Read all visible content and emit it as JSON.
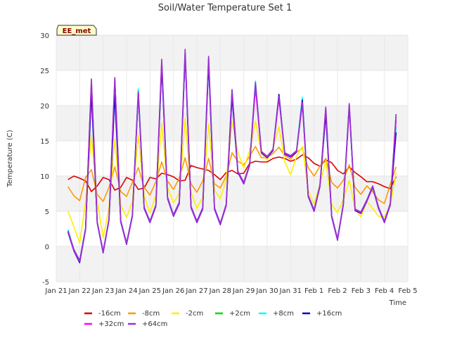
{
  "chart_data": {
    "type": "line",
    "title": "Soil/Water Temperature Set 1",
    "xlabel": "Time",
    "ylabel": "Temperature (C)",
    "site_badge": "EE_met",
    "ylim": [
      -5,
      30
    ],
    "yticks": [
      -5,
      0,
      5,
      10,
      15,
      20,
      25,
      30
    ],
    "xlim": [
      "2024-01-21",
      "2024-02-05"
    ],
    "xticks": [
      "Jan 21",
      "Jan 22",
      "Jan 23",
      "Jan 24",
      "Jan 25",
      "Jan 26",
      "Jan 27",
      "Jan 28",
      "Jan 29",
      "Jan 30",
      "Jan 31",
      "Feb 1",
      "Feb 2",
      "Feb 3",
      "Feb 4",
      "Feb 5"
    ],
    "grid": "alternating horizontal bands",
    "legend_position": "bottom",
    "x": [
      "Jan 21 12:00",
      "Jan 21 18:00",
      "Jan 22 00:00",
      "Jan 22 06:00",
      "Jan 22 12:00",
      "Jan 22 18:00",
      "Jan 23 00:00",
      "Jan 23 06:00",
      "Jan 23 12:00",
      "Jan 23 18:00",
      "Jan 24 00:00",
      "Jan 24 06:00",
      "Jan 24 12:00",
      "Jan 24 18:00",
      "Jan 25 00:00",
      "Jan 25 06:00",
      "Jan 25 12:00",
      "Jan 25 18:00",
      "Jan 26 00:00",
      "Jan 26 06:00",
      "Jan 26 12:00",
      "Jan 26 18:00",
      "Jan 27 00:00",
      "Jan 27 06:00",
      "Jan 27 12:00",
      "Jan 27 18:00",
      "Jan 28 00:00",
      "Jan 28 06:00",
      "Jan 28 12:00",
      "Jan 28 18:00",
      "Jan 29 00:00",
      "Jan 29 06:00",
      "Jan 29 12:00",
      "Jan 29 18:00",
      "Jan 30 00:00",
      "Jan 30 06:00",
      "Jan 30 12:00",
      "Jan 30 18:00",
      "Jan 31 00:00",
      "Jan 31 06:00",
      "Jan 31 12:00",
      "Jan 31 18:00",
      "Feb 1 00:00",
      "Feb 1 06:00",
      "Feb 1 12:00",
      "Feb 1 18:00",
      "Feb 2 00:00",
      "Feb 2 06:00",
      "Feb 2 12:00",
      "Feb 2 18:00",
      "Feb 3 00:00",
      "Feb 3 06:00",
      "Feb 3 12:00",
      "Feb 3 18:00",
      "Feb 4 00:00",
      "Feb 4 06:00",
      "Feb 4 12:00"
    ],
    "series": [
      {
        "name": "-16cm",
        "color": "#dd0000",
        "values": [
          9.5,
          10.0,
          9.7,
          9.3,
          7.8,
          8.6,
          9.8,
          9.5,
          8.0,
          8.4,
          9.8,
          9.4,
          8.1,
          8.3,
          9.8,
          9.6,
          10.4,
          10.2,
          9.9,
          9.3,
          9.4,
          11.5,
          11.2,
          11.0,
          10.8,
          10.2,
          9.5,
          10.5,
          10.8,
          10.3,
          10.4,
          11.8,
          12.1,
          12.0,
          12.0,
          12.5,
          12.7,
          12.5,
          12.1,
          12.4,
          13.0,
          12.6,
          11.8,
          11.4,
          12.3,
          11.9,
          10.8,
          10.3,
          11.3,
          10.5,
          9.9,
          9.2,
          9.2,
          8.9,
          8.5,
          8.2,
          9.9
        ]
      },
      {
        "name": "-8cm",
        "color": "#ff9900",
        "values": [
          8.5,
          7.2,
          6.5,
          9.8,
          10.9,
          7.4,
          6.4,
          8.4,
          11.3,
          7.8,
          7.1,
          9.1,
          11.2,
          8.4,
          7.3,
          9.2,
          12.0,
          9.3,
          8.1,
          9.7,
          12.6,
          8.9,
          7.7,
          9.3,
          12.5,
          8.9,
          8.3,
          10.0,
          13.3,
          12.1,
          11.6,
          12.8,
          14.2,
          12.6,
          12.6,
          13.2,
          14.1,
          12.9,
          12.4,
          13.4,
          13.9,
          11.2,
          10.0,
          11.4,
          12.5,
          9.1,
          8.3,
          9.4,
          11.6,
          8.4,
          7.4,
          8.6,
          7.8,
          6.6,
          6.1,
          8.8,
          11.3
        ]
      },
      {
        "name": "-2cm",
        "color": "#ffee00",
        "values": [
          5.0,
          2.8,
          0.5,
          6.3,
          15.8,
          6.5,
          1.2,
          5.5,
          15.2,
          5.9,
          4.1,
          6.4,
          15.8,
          7.2,
          4.7,
          7.3,
          17.5,
          8.4,
          6.2,
          7.5,
          18.2,
          7.7,
          5.4,
          7.0,
          17.4,
          8.0,
          6.8,
          9.4,
          17.8,
          13.4,
          11.1,
          13.6,
          17.8,
          13.2,
          12.2,
          14.0,
          17.0,
          12.0,
          10.2,
          12.8,
          14.2,
          8.0,
          6.0,
          8.8,
          12.2,
          6.0,
          4.8,
          6.6,
          9.4,
          5.3,
          4.2,
          6.4,
          5.4,
          4.3,
          4.2,
          5.8,
          10.5
        ]
      },
      {
        "name": "+2cm",
        "color": "#00dd00",
        "values": [
          2.2,
          -0.5,
          -2.2,
          2.5,
          22.0,
          3.4,
          -0.8,
          3.8,
          22.5,
          3.6,
          0.4,
          4.4,
          22.0,
          5.5,
          3.5,
          5.8,
          25.5,
          6.9,
          4.4,
          6.2,
          27.0,
          5.6,
          3.5,
          5.4,
          26.0,
          5.4,
          3.2,
          5.9,
          21.5,
          10.6,
          9.0,
          11.6,
          23.0,
          13.4,
          12.7,
          13.7,
          21.2,
          13.2,
          12.8,
          13.5,
          20.6,
          7.2,
          5.1,
          8.6,
          18.9,
          4.3,
          1.0,
          6.0,
          20.0,
          5.2,
          4.8,
          6.5,
          8.5,
          5.5,
          3.5,
          6.0,
          18.5
        ]
      },
      {
        "name": "+8cm",
        "color": "#00ffff",
        "values": [
          2.4,
          -0.4,
          -2.0,
          2.6,
          22.5,
          3.5,
          -0.7,
          3.9,
          23.2,
          3.7,
          0.5,
          4.5,
          22.4,
          5.6,
          3.6,
          5.9,
          25.8,
          7.0,
          4.5,
          6.3,
          27.0,
          5.7,
          3.6,
          5.5,
          26.2,
          5.5,
          3.3,
          6.0,
          22.2,
          10.7,
          9.1,
          11.7,
          23.5,
          13.5,
          12.8,
          13.8,
          21.5,
          13.3,
          12.9,
          13.6,
          21.2,
          7.3,
          5.2,
          8.7,
          19.2,
          4.4,
          1.1,
          6.1,
          20.2,
          5.3,
          4.9,
          6.6,
          8.6,
          5.6,
          3.6,
          6.1,
          17.0
        ]
      },
      {
        "name": "+16cm",
        "color": "#0000cc",
        "values": [
          2.0,
          -0.6,
          -2.3,
          2.4,
          21.8,
          3.3,
          -0.9,
          3.7,
          21.5,
          3.5,
          0.3,
          4.3,
          21.8,
          5.4,
          3.4,
          5.7,
          25.6,
          6.8,
          4.3,
          6.1,
          27.2,
          5.5,
          3.4,
          5.3,
          26.0,
          5.3,
          3.1,
          5.8,
          21.2,
          10.5,
          8.9,
          11.5,
          23.0,
          13.3,
          12.6,
          13.6,
          21.6,
          13.1,
          12.7,
          13.4,
          20.8,
          7.1,
          5.0,
          8.5,
          18.8,
          4.2,
          0.9,
          5.9,
          19.8,
          5.1,
          4.7,
          6.4,
          8.4,
          5.4,
          3.4,
          5.9,
          16.2
        ]
      },
      {
        "name": "+32cm",
        "color": "#ff00ff",
        "values": [
          2.1,
          -0.5,
          -2.1,
          2.5,
          23.5,
          3.4,
          -0.8,
          3.8,
          23.8,
          3.6,
          0.4,
          4.4,
          21.5,
          5.5,
          3.5,
          5.8,
          26.3,
          6.9,
          4.4,
          6.2,
          27.5,
          5.6,
          3.5,
          5.4,
          26.8,
          5.4,
          3.2,
          5.9,
          22.0,
          10.6,
          9.0,
          11.6,
          22.5,
          13.4,
          12.7,
          13.7,
          21.0,
          13.2,
          12.8,
          13.5,
          20.2,
          7.2,
          5.1,
          8.6,
          19.6,
          4.3,
          1.0,
          6.0,
          20.1,
          5.2,
          4.8,
          6.5,
          8.5,
          5.5,
          3.5,
          6.0,
          18.0
        ]
      },
      {
        "name": "+64cm",
        "color": "#9933cc",
        "values": [
          2.2,
          -0.4,
          -2.0,
          2.6,
          23.8,
          3.5,
          -0.7,
          3.9,
          24.0,
          3.7,
          0.5,
          4.5,
          22.0,
          5.6,
          3.6,
          5.9,
          26.6,
          7.0,
          4.5,
          6.3,
          28.0,
          5.7,
          3.6,
          5.5,
          27.0,
          5.5,
          3.3,
          6.0,
          22.3,
          10.7,
          9.1,
          11.7,
          23.3,
          13.5,
          12.8,
          13.8,
          21.3,
          13.3,
          12.9,
          13.6,
          20.5,
          7.3,
          5.2,
          8.7,
          19.8,
          4.4,
          1.1,
          6.1,
          20.3,
          5.3,
          4.9,
          6.6,
          8.6,
          5.6,
          3.6,
          6.1,
          18.8
        ]
      }
    ]
  }
}
